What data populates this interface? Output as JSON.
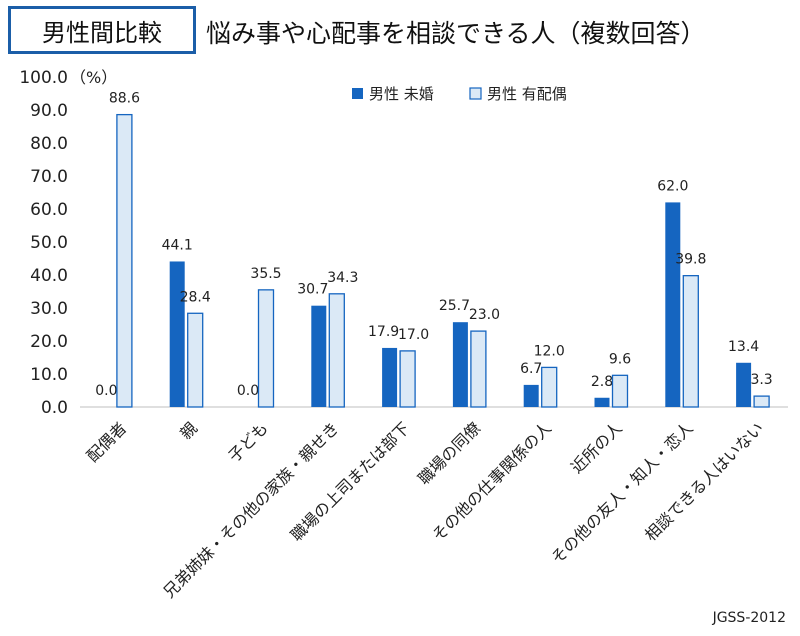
{
  "header": {
    "tag": "男性間比較",
    "title": "悩み事や心配事を相談できる人（複数回答）"
  },
  "source": "JGSS-2012",
  "chart_data": {
    "type": "bar",
    "unit_label": "（%）",
    "ylim": [
      0,
      100
    ],
    "yticks": [
      "0.0",
      "10.0",
      "20.0",
      "30.0",
      "40.0",
      "50.0",
      "60.0",
      "70.0",
      "80.0",
      "90.0",
      "100.0"
    ],
    "legend_position": "top-right",
    "categories": [
      "配偶者",
      "親",
      "子ども",
      "兄弟姉妹・その他の家族・親せき",
      "職場の上司または部下",
      "職場の同僚",
      "その他の仕事関係の人",
      "近所の人",
      "その他の友人・知人・恋人",
      "相談できる人はいない"
    ],
    "series": [
      {
        "name": "男性 未婚",
        "color": "#1565c0",
        "values": [
          0.0,
          44.1,
          0.0,
          30.7,
          17.9,
          25.7,
          6.7,
          2.8,
          62.0,
          13.4
        ],
        "labels": [
          "0.0",
          "44.1",
          "0.0",
          "30.7",
          "17.9",
          "25.7",
          "6.7",
          "2.8",
          "62.0",
          "13.4"
        ]
      },
      {
        "name": "男性 有配偶",
        "color": "#dbe9f6",
        "stroke": "#1565c0",
        "values": [
          88.6,
          28.4,
          35.5,
          34.3,
          17.0,
          23.0,
          12.0,
          9.6,
          39.8,
          3.3
        ],
        "labels": [
          "88.6",
          "28.4",
          "35.5",
          "34.3",
          "17.0",
          "23.0",
          "12.0",
          "9.6",
          "39.8",
          "3.3"
        ]
      }
    ]
  }
}
